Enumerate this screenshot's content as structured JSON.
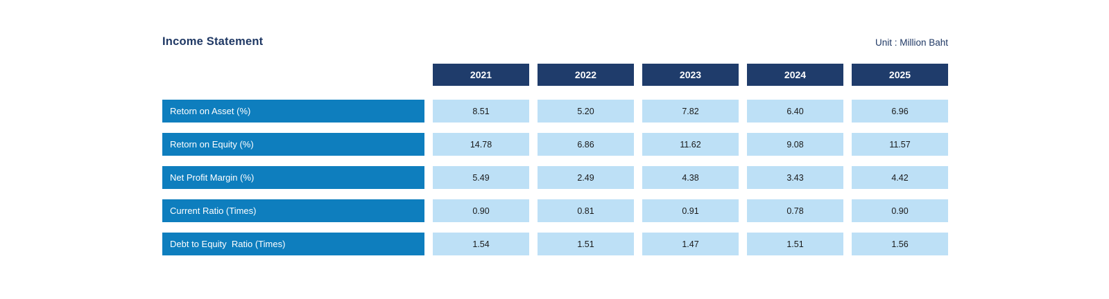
{
  "title": "Income Statement",
  "unit_label": "Unit : Million Baht",
  "table": {
    "years": [
      "2021",
      "2022",
      "2023",
      "2024",
      "2025"
    ],
    "rows": [
      {
        "label": "Retorn on Asset (%)",
        "values": [
          "8.51",
          "5.20",
          "7.82",
          "6.40",
          "6.96"
        ]
      },
      {
        "label": "Retorn on Equity (%)",
        "values": [
          "14.78",
          "6.86",
          "11.62",
          "9.08",
          "11.57"
        ]
      },
      {
        "label": "Net Profit Margin (%)",
        "values": [
          "5.49",
          "2.49",
          "4.38",
          "3.43",
          "4.42"
        ]
      },
      {
        "label": "Current Ratio (Times)",
        "values": [
          "0.90",
          "0.81",
          "0.91",
          "0.78",
          "0.90"
        ]
      },
      {
        "label": "Debt to Equity  Ratio (Times)",
        "values": [
          "1.54",
          "1.51",
          "1.47",
          "1.51",
          "1.56"
        ]
      }
    ]
  },
  "colors": {
    "year_header_bg": "#1f3c6b",
    "row_label_bg": "#0e7ebe",
    "value_cell_bg": "#bde0f6",
    "title_text": "#1f3864",
    "value_text": "#1a1a1a",
    "header_text": "#ffffff"
  },
  "chart_data": {
    "type": "table",
    "title": "Income Statement",
    "unit": "Unit : Million Baht",
    "categories": [
      "2021",
      "2022",
      "2023",
      "2024",
      "2025"
    ],
    "series": [
      {
        "name": "Retorn on Asset (%)",
        "values": [
          8.51,
          5.2,
          7.82,
          6.4,
          6.96
        ]
      },
      {
        "name": "Retorn on Equity (%)",
        "values": [
          14.78,
          6.86,
          11.62,
          9.08,
          11.57
        ]
      },
      {
        "name": "Net Profit Margin (%)",
        "values": [
          5.49,
          2.49,
          4.38,
          3.43,
          4.42
        ]
      },
      {
        "name": "Current Ratio (Times)",
        "values": [
          0.9,
          0.81,
          0.91,
          0.78,
          0.9
        ]
      },
      {
        "name": "Debt to Equity  Ratio (Times)",
        "values": [
          1.54,
          1.51,
          1.47,
          1.51,
          1.56
        ]
      }
    ],
    "layout": {
      "header_row_position": "top",
      "label_column_position": "left",
      "grid": "off"
    }
  }
}
